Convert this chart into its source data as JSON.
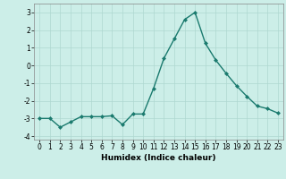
{
  "x": [
    0,
    1,
    2,
    3,
    4,
    5,
    6,
    7,
    8,
    9,
    10,
    11,
    12,
    13,
    14,
    15,
    16,
    17,
    18,
    19,
    20,
    21,
    22,
    23
  ],
  "y": [
    -3.0,
    -3.0,
    -3.5,
    -3.2,
    -2.9,
    -2.9,
    -2.9,
    -2.85,
    -3.35,
    -2.75,
    -2.75,
    -1.3,
    0.4,
    1.5,
    2.6,
    3.0,
    1.25,
    0.3,
    -0.45,
    -1.15,
    -1.75,
    -2.3,
    -2.45,
    -2.7
  ],
  "line_color": "#1a7a6e",
  "marker": "D",
  "markersize": 2.0,
  "linewidth": 1.0,
  "xlabel": "Humidex (Indice chaleur)",
  "xlim": [
    -0.5,
    23.5
  ],
  "ylim": [
    -4.2,
    3.5
  ],
  "yticks": [
    -4,
    -3,
    -2,
    -1,
    0,
    1,
    2,
    3
  ],
  "xticks": [
    0,
    1,
    2,
    3,
    4,
    5,
    6,
    7,
    8,
    9,
    10,
    11,
    12,
    13,
    14,
    15,
    16,
    17,
    18,
    19,
    20,
    21,
    22,
    23
  ],
  "grid_color": "#aed8d0",
  "bg_color": "#cceee8",
  "tick_fontsize": 5.5,
  "xlabel_fontsize": 6.5
}
